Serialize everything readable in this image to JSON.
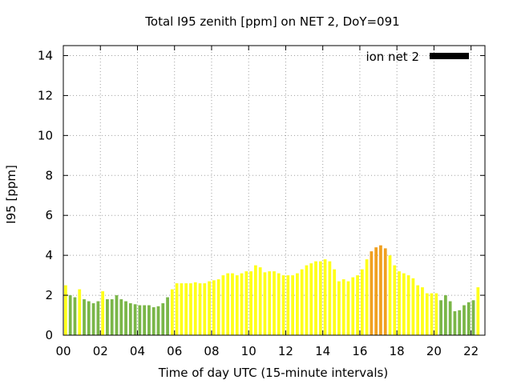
{
  "chart_data": {
    "type": "bar",
    "title": "Total I95 zenith [ppm] on NET 2, DoY=091",
    "xlabel": "Time of day UTC (15-minute intervals)",
    "ylabel": "I95 [ppm]",
    "ylim": [
      0,
      14.5
    ],
    "xlim": [
      0,
      22.75
    ],
    "grid": true,
    "legend_placement": "top-right",
    "legend": [
      {
        "name": "ion net 2",
        "color": "#000000"
      }
    ],
    "y_ticks": [
      0,
      2,
      4,
      6,
      8,
      10,
      12,
      14
    ],
    "y_tick_labels": [
      "0",
      "2",
      "4",
      "6",
      "8",
      "10",
      "12",
      "14"
    ],
    "x_ticks": [
      0,
      2,
      4,
      6,
      8,
      10,
      12,
      14,
      16,
      18,
      20,
      22
    ],
    "x_tick_labels": [
      "00",
      "02",
      "04",
      "06",
      "08",
      "10",
      "12",
      "14",
      "16",
      "18",
      "20",
      "22"
    ],
    "bar_interval_hours": 0.25,
    "color_scale": {
      "green": "#7ab648",
      "yellow": "#ffff1a",
      "orange": "#f0a020"
    },
    "values": [
      2.5,
      2.0,
      1.9,
      2.3,
      1.8,
      1.7,
      1.6,
      1.7,
      2.2,
      1.8,
      1.8,
      2.0,
      1.8,
      1.7,
      1.6,
      1.55,
      1.5,
      1.5,
      1.5,
      1.4,
      1.45,
      1.6,
      1.9,
      2.3,
      2.6,
      2.6,
      2.6,
      2.6,
      2.65,
      2.6,
      2.6,
      2.7,
      2.75,
      2.8,
      3.0,
      3.1,
      3.1,
      3.0,
      3.1,
      3.2,
      3.2,
      3.5,
      3.4,
      3.15,
      3.2,
      3.2,
      3.1,
      3.0,
      3.0,
      3.0,
      3.1,
      3.3,
      3.5,
      3.6,
      3.7,
      3.7,
      3.8,
      3.7,
      3.3,
      2.7,
      2.8,
      2.7,
      2.9,
      3.0,
      3.3,
      3.8,
      4.2,
      4.4,
      4.5,
      4.35,
      4.0,
      3.5,
      3.2,
      3.1,
      3.0,
      2.85,
      2.5,
      2.4,
      2.1,
      2.1,
      2.1,
      1.75,
      2.0,
      1.7,
      1.2,
      1.25,
      1.5,
      1.65,
      1.75,
      2.4
    ],
    "value_colors": [
      "yellow",
      "green",
      "green",
      "yellow",
      "green",
      "green",
      "green",
      "green",
      "yellow",
      "green",
      "green",
      "green",
      "green",
      "green",
      "green",
      "green",
      "green",
      "green",
      "green",
      "green",
      "green",
      "green",
      "green",
      "yellow",
      "yellow",
      "yellow",
      "yellow",
      "yellow",
      "yellow",
      "yellow",
      "yellow",
      "yellow",
      "yellow",
      "yellow",
      "yellow",
      "yellow",
      "yellow",
      "yellow",
      "yellow",
      "yellow",
      "yellow",
      "yellow",
      "yellow",
      "yellow",
      "yellow",
      "yellow",
      "yellow",
      "yellow",
      "yellow",
      "yellow",
      "yellow",
      "yellow",
      "yellow",
      "yellow",
      "yellow",
      "yellow",
      "yellow",
      "yellow",
      "yellow",
      "yellow",
      "yellow",
      "yellow",
      "yellow",
      "yellow",
      "yellow",
      "yellow",
      "orange",
      "orange",
      "orange",
      "orange",
      "yellow",
      "yellow",
      "yellow",
      "yellow",
      "yellow",
      "yellow",
      "yellow",
      "yellow",
      "yellow",
      "yellow",
      "yellow",
      "green",
      "green",
      "green",
      "green",
      "green",
      "green",
      "green",
      "green",
      "yellow"
    ]
  }
}
